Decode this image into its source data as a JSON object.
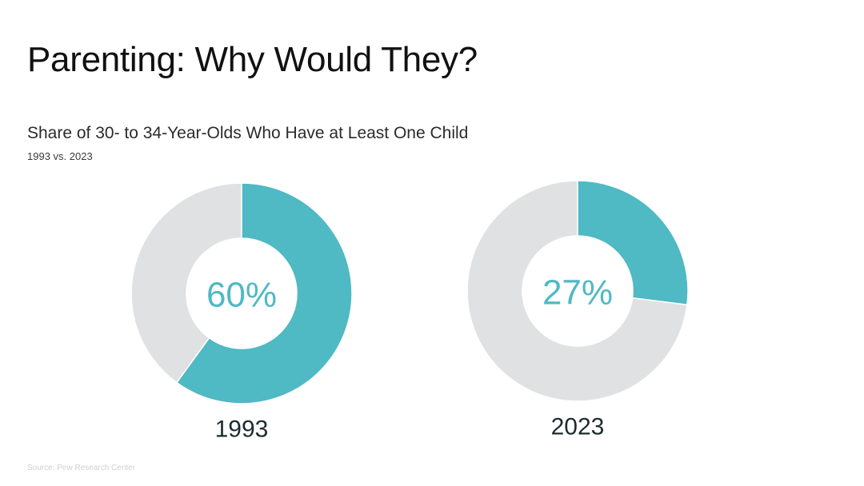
{
  "slide": {
    "title": "Parenting: Why Would They?",
    "source": "Source: Pew Research Center"
  },
  "chart_data": {
    "type": "pie",
    "style": "donut",
    "title": "Share of 30- to 34-Year-Olds Who Have at Least One Child",
    "subtitle": "1993 vs. 2023",
    "colors": {
      "share": "#4fb9c4",
      "remainder": "#e0e1e3"
    },
    "charts": [
      {
        "category": "1993",
        "value": 60,
        "label": "60%"
      },
      {
        "category": "2023",
        "value": 27,
        "label": "27%"
      }
    ]
  }
}
